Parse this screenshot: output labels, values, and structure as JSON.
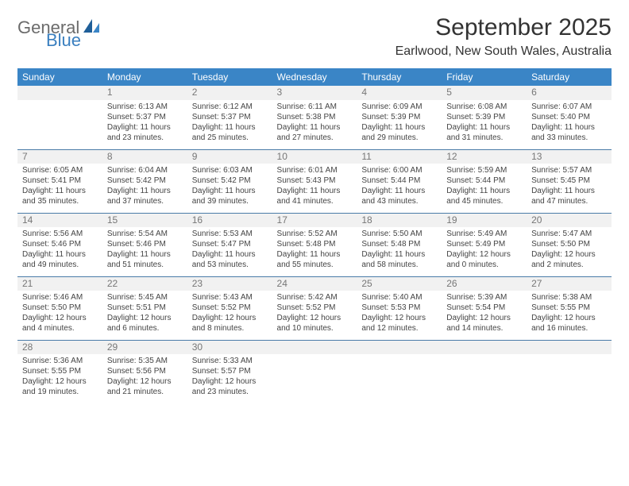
{
  "brand": {
    "part1": "General",
    "part2": "Blue"
  },
  "title": "September 2025",
  "location": "Earlwood, New South Wales, Australia",
  "header_bg": "#3a85c6",
  "day_headers": [
    "Sunday",
    "Monday",
    "Tuesday",
    "Wednesday",
    "Thursday",
    "Friday",
    "Saturday"
  ],
  "weeks": [
    [
      null,
      {
        "n": "1",
        "sr": "Sunrise: 6:13 AM",
        "ss": "Sunset: 5:37 PM",
        "d1": "Daylight: 11 hours",
        "d2": "and 23 minutes."
      },
      {
        "n": "2",
        "sr": "Sunrise: 6:12 AM",
        "ss": "Sunset: 5:37 PM",
        "d1": "Daylight: 11 hours",
        "d2": "and 25 minutes."
      },
      {
        "n": "3",
        "sr": "Sunrise: 6:11 AM",
        "ss": "Sunset: 5:38 PM",
        "d1": "Daylight: 11 hours",
        "d2": "and 27 minutes."
      },
      {
        "n": "4",
        "sr": "Sunrise: 6:09 AM",
        "ss": "Sunset: 5:39 PM",
        "d1": "Daylight: 11 hours",
        "d2": "and 29 minutes."
      },
      {
        "n": "5",
        "sr": "Sunrise: 6:08 AM",
        "ss": "Sunset: 5:39 PM",
        "d1": "Daylight: 11 hours",
        "d2": "and 31 minutes."
      },
      {
        "n": "6",
        "sr": "Sunrise: 6:07 AM",
        "ss": "Sunset: 5:40 PM",
        "d1": "Daylight: 11 hours",
        "d2": "and 33 minutes."
      }
    ],
    [
      {
        "n": "7",
        "sr": "Sunrise: 6:05 AM",
        "ss": "Sunset: 5:41 PM",
        "d1": "Daylight: 11 hours",
        "d2": "and 35 minutes."
      },
      {
        "n": "8",
        "sr": "Sunrise: 6:04 AM",
        "ss": "Sunset: 5:42 PM",
        "d1": "Daylight: 11 hours",
        "d2": "and 37 minutes."
      },
      {
        "n": "9",
        "sr": "Sunrise: 6:03 AM",
        "ss": "Sunset: 5:42 PM",
        "d1": "Daylight: 11 hours",
        "d2": "and 39 minutes."
      },
      {
        "n": "10",
        "sr": "Sunrise: 6:01 AM",
        "ss": "Sunset: 5:43 PM",
        "d1": "Daylight: 11 hours",
        "d2": "and 41 minutes."
      },
      {
        "n": "11",
        "sr": "Sunrise: 6:00 AM",
        "ss": "Sunset: 5:44 PM",
        "d1": "Daylight: 11 hours",
        "d2": "and 43 minutes."
      },
      {
        "n": "12",
        "sr": "Sunrise: 5:59 AM",
        "ss": "Sunset: 5:44 PM",
        "d1": "Daylight: 11 hours",
        "d2": "and 45 minutes."
      },
      {
        "n": "13",
        "sr": "Sunrise: 5:57 AM",
        "ss": "Sunset: 5:45 PM",
        "d1": "Daylight: 11 hours",
        "d2": "and 47 minutes."
      }
    ],
    [
      {
        "n": "14",
        "sr": "Sunrise: 5:56 AM",
        "ss": "Sunset: 5:46 PM",
        "d1": "Daylight: 11 hours",
        "d2": "and 49 minutes."
      },
      {
        "n": "15",
        "sr": "Sunrise: 5:54 AM",
        "ss": "Sunset: 5:46 PM",
        "d1": "Daylight: 11 hours",
        "d2": "and 51 minutes."
      },
      {
        "n": "16",
        "sr": "Sunrise: 5:53 AM",
        "ss": "Sunset: 5:47 PM",
        "d1": "Daylight: 11 hours",
        "d2": "and 53 minutes."
      },
      {
        "n": "17",
        "sr": "Sunrise: 5:52 AM",
        "ss": "Sunset: 5:48 PM",
        "d1": "Daylight: 11 hours",
        "d2": "and 55 minutes."
      },
      {
        "n": "18",
        "sr": "Sunrise: 5:50 AM",
        "ss": "Sunset: 5:48 PM",
        "d1": "Daylight: 11 hours",
        "d2": "and 58 minutes."
      },
      {
        "n": "19",
        "sr": "Sunrise: 5:49 AM",
        "ss": "Sunset: 5:49 PM",
        "d1": "Daylight: 12 hours",
        "d2": "and 0 minutes."
      },
      {
        "n": "20",
        "sr": "Sunrise: 5:47 AM",
        "ss": "Sunset: 5:50 PM",
        "d1": "Daylight: 12 hours",
        "d2": "and 2 minutes."
      }
    ],
    [
      {
        "n": "21",
        "sr": "Sunrise: 5:46 AM",
        "ss": "Sunset: 5:50 PM",
        "d1": "Daylight: 12 hours",
        "d2": "and 4 minutes."
      },
      {
        "n": "22",
        "sr": "Sunrise: 5:45 AM",
        "ss": "Sunset: 5:51 PM",
        "d1": "Daylight: 12 hours",
        "d2": "and 6 minutes."
      },
      {
        "n": "23",
        "sr": "Sunrise: 5:43 AM",
        "ss": "Sunset: 5:52 PM",
        "d1": "Daylight: 12 hours",
        "d2": "and 8 minutes."
      },
      {
        "n": "24",
        "sr": "Sunrise: 5:42 AM",
        "ss": "Sunset: 5:52 PM",
        "d1": "Daylight: 12 hours",
        "d2": "and 10 minutes."
      },
      {
        "n": "25",
        "sr": "Sunrise: 5:40 AM",
        "ss": "Sunset: 5:53 PM",
        "d1": "Daylight: 12 hours",
        "d2": "and 12 minutes."
      },
      {
        "n": "26",
        "sr": "Sunrise: 5:39 AM",
        "ss": "Sunset: 5:54 PM",
        "d1": "Daylight: 12 hours",
        "d2": "and 14 minutes."
      },
      {
        "n": "27",
        "sr": "Sunrise: 5:38 AM",
        "ss": "Sunset: 5:55 PM",
        "d1": "Daylight: 12 hours",
        "d2": "and 16 minutes."
      }
    ],
    [
      {
        "n": "28",
        "sr": "Sunrise: 5:36 AM",
        "ss": "Sunset: 5:55 PM",
        "d1": "Daylight: 12 hours",
        "d2": "and 19 minutes."
      },
      {
        "n": "29",
        "sr": "Sunrise: 5:35 AM",
        "ss": "Sunset: 5:56 PM",
        "d1": "Daylight: 12 hours",
        "d2": "and 21 minutes."
      },
      {
        "n": "30",
        "sr": "Sunrise: 5:33 AM",
        "ss": "Sunset: 5:57 PM",
        "d1": "Daylight: 12 hours",
        "d2": "and 23 minutes."
      },
      null,
      null,
      null,
      null
    ]
  ]
}
